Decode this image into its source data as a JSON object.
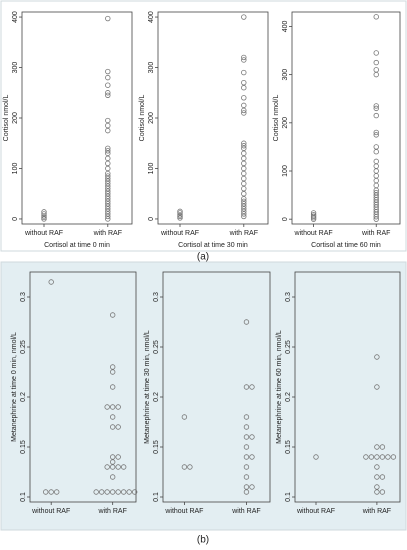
{
  "chart_data": [
    {
      "type": "dot",
      "xlabel": "Cortisol at time 0 min",
      "ylabel": "Cortisol nmol/L",
      "categories": [
        "without RAF",
        "with RAF"
      ],
      "values": [
        [
          0,
          3,
          6,
          10,
          14
        ],
        [
          397,
          292,
          280,
          265,
          250,
          245,
          195,
          185,
          175,
          140,
          135,
          130,
          120,
          110,
          100,
          90,
          85,
          80,
          75,
          70,
          65,
          60,
          55,
          50,
          45,
          40,
          35,
          30,
          25,
          20,
          15,
          10,
          5,
          0
        ]
      ],
      "ylim": [
        -10,
        410
      ],
      "yticks": [
        0,
        100,
        200,
        300,
        400
      ],
      "color": "#777777"
    },
    {
      "type": "dot",
      "xlabel": "Cortisol at time 30 min",
      "ylabel": "Cortisol nmol/L",
      "categories": [
        "without RAF",
        "with RAF"
      ],
      "values": [
        [
          2,
          5,
          8,
          12,
          15
        ],
        [
          400,
          320,
          315,
          290,
          270,
          260,
          240,
          225,
          215,
          210,
          150,
          145,
          140,
          130,
          120,
          110,
          100,
          90,
          80,
          70,
          60,
          50,
          40,
          35,
          30,
          25,
          20,
          15,
          10,
          5
        ]
      ],
      "ylim": [
        -10,
        410
      ],
      "yticks": [
        0,
        100,
        200,
        300,
        400
      ],
      "color": "#777777"
    },
    {
      "type": "dot",
      "xlabel": "Cortisol at time 60 min",
      "ylabel": "Cortisol nmol/L",
      "categories": [
        "without RAF",
        "with RAF"
      ],
      "values": [
        [
          0,
          3,
          6,
          9,
          13
        ],
        [
          420,
          345,
          325,
          310,
          300,
          235,
          230,
          215,
          180,
          175,
          150,
          140,
          120,
          110,
          100,
          90,
          80,
          70,
          60,
          55,
          50,
          45,
          40,
          35,
          30,
          25,
          20,
          15,
          10,
          5,
          0
        ]
      ],
      "ylim": [
        -10,
        430
      ],
      "yticks": [
        0,
        100,
        200,
        300,
        400
      ],
      "color": "#777777"
    },
    {
      "type": "dot",
      "ylabel": "Metanephrine at time 0 min, nmol/L",
      "categories": [
        "without RAF",
        "with RAF"
      ],
      "values": [
        [
          0.315,
          0.105,
          0.105,
          0.105
        ],
        [
          0.282,
          0.23,
          0.225,
          0.21,
          0.19,
          0.19,
          0.19,
          0.18,
          0.17,
          0.17,
          0.14,
          0.14,
          0.135,
          0.13,
          0.13,
          0.13,
          0.13,
          0.12,
          0.105,
          0.105,
          0.105,
          0.105,
          0.105,
          0.105,
          0.105,
          0.105
        ]
      ],
      "ylim": [
        0.095,
        0.325
      ],
      "yticks": [
        0.1,
        0.15,
        0.2,
        0.25,
        0.3
      ],
      "color": "#777777"
    },
    {
      "type": "dot",
      "ylabel": "Metanephrine at time 30 min, nmol/L",
      "categories": [
        "without RAF",
        "with RAF"
      ],
      "values": [
        [
          0.18,
          0.13,
          0.13
        ],
        [
          0.275,
          0.21,
          0.21,
          0.18,
          0.17,
          0.16,
          0.16,
          0.15,
          0.14,
          0.14,
          0.13,
          0.12,
          0.11,
          0.11,
          0.105
        ]
      ],
      "ylim": [
        0.095,
        0.325
      ],
      "yticks": [
        0.1,
        0.15,
        0.2,
        0.25,
        0.3
      ],
      "color": "#777777"
    },
    {
      "type": "dot",
      "ylabel": "Metanephrine at time 60 min, nmol/L",
      "categories": [
        "without RAF",
        "with RAF"
      ],
      "values": [
        [
          0.14
        ],
        [
          0.24,
          0.21,
          0.15,
          0.15,
          0.14,
          0.14,
          0.14,
          0.14,
          0.14,
          0.14,
          0.13,
          0.12,
          0.12,
          0.11,
          0.105,
          0.105
        ]
      ],
      "ylim": [
        0.095,
        0.325
      ],
      "yticks": [
        0.1,
        0.15,
        0.2,
        0.25,
        0.3
      ],
      "color": "#777777"
    }
  ],
  "panel_labels": [
    "(a)",
    "(b)"
  ]
}
